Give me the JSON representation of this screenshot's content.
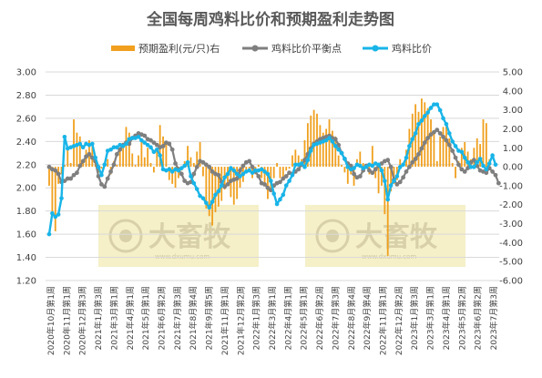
{
  "colors": {
    "profit_bar": "#f0a01e",
    "balance_line": "#7f7f7f",
    "ratio_line": "#18b4e8",
    "grid": "#d9d9d9",
    "text": "#404040",
    "title": "#595959",
    "watermark_box": "#f5f0c8"
  },
  "watermark": {
    "brand": "大畜牧",
    "url": "www.dxumu.com"
  },
  "chart_data": {
    "type": "combo-bar-line",
    "title": "全国每周鸡料比价和预期盈利走势图",
    "legend_position": "top",
    "grid": true,
    "xlabel": "",
    "ylabel": "",
    "ylabel_right": "",
    "ylim": [
      1.2,
      3.0
    ],
    "ylim_right": [
      -6.0,
      5.0
    ],
    "yticks": [
      "3.00",
      "2.80",
      "2.60",
      "2.40",
      "2.20",
      "2.00",
      "1.80",
      "1.60",
      "1.40",
      "1.20"
    ],
    "yticks_right": [
      "5.00",
      "4.00",
      "3.00",
      "2.00",
      "1.00",
      "0.00",
      "-1.00",
      "-2.00",
      "-3.00",
      "-4.00",
      "-5.00",
      "-6.00"
    ],
    "x_tick_labels": [
      "2020年10月第1周",
      "2020年11月第1周",
      "2020年12月第3周",
      "2021年1月第3周",
      "2021年3月第1周",
      "2021年4月第1周",
      "2021年5月第1周",
      "2021年6月第2周",
      "2021年7月第3周",
      "2021年8月第4周",
      "2021年9月第5周",
      "2021年11月第1周",
      "2021年12月第2周",
      "2022年1月第3周",
      "2022年3月第1周",
      "2022年4月第1周",
      "2022年5月第1周",
      "2022年6月第2周",
      "2022年7月第3周",
      "2022年8月第4周",
      "2022年9月第4周",
      "2022年11月第1周",
      "2022年12月第2周",
      "2023年1月第3周",
      "2023年3月第1周",
      "2023年4月第1周",
      "2023年5月第2周",
      "2023年6月第2周",
      "2023年7月第3周"
    ],
    "series": [
      {
        "name": "预期盈利(元/只)右",
        "type": "bar",
        "axis": "right",
        "values": [
          -1.0,
          -2.5,
          -3.4,
          -0.9,
          -0.4,
          0.1,
          1.0,
          0.2,
          2.5,
          1.8,
          1.6,
          0.3,
          0.9,
          1.4,
          1.2,
          0.5,
          -0.3,
          -0.1,
          0.2,
          0.4,
          -0.4,
          0.3,
          0.1,
          0.9,
          1.2,
          2.1,
          1.8,
          0.7,
          0.1,
          0.6,
          1.4,
          0.5,
          1.0,
          0.2,
          -0.3,
          0.9,
          2.2,
          1.6,
          1.2,
          -0.7,
          -0.9,
          -1.1,
          -0.6,
          -0.2,
          0.3,
          1.1,
          0.5,
          0.2,
          0.8,
          1.3,
          -0.5,
          -2.2,
          -2.6,
          -3.1,
          -2.4,
          -2.1,
          -1.8,
          -1.2,
          -0.9,
          -1.6,
          -2.0,
          -1.7,
          -1.1,
          -0.8,
          -0.3,
          -0.2,
          -0.6,
          -0.4,
          0.1,
          -0.6,
          -0.9,
          -1.7,
          -1.2,
          -0.6,
          0.2,
          -0.6,
          -0.7,
          -0.2,
          -0.1,
          0.6,
          0.9,
          0.6,
          0.4,
          1.4,
          2.3,
          2.7,
          3.0,
          2.8,
          2.2,
          1.8,
          2.0,
          2.5,
          1.9,
          1.6,
          0.6,
          0.1,
          -0.3,
          -0.9,
          -0.4,
          -1.0,
          0.4,
          0.8,
          0.2,
          -0.1,
          -0.4,
          1.1,
          -0.6,
          -1.4,
          -1.0,
          -2.5,
          -4.7,
          -1.3,
          -0.9,
          -0.7,
          0.4,
          0.1,
          0.9,
          2.0,
          2.8,
          3.3,
          2.9,
          3.6,
          3.4,
          3.1,
          2.5,
          1.9,
          0.3,
          1.6,
          2.1,
          2.3,
          1.5,
          0.2,
          -0.6,
          0.3,
          1.0,
          1.3,
          0.8,
          0.4,
          1.0,
          1.5,
          1.2,
          2.5,
          2.3,
          0.4
        ]
      },
      {
        "name": "鸡料比价平衡点",
        "type": "line",
        "axis": "left",
        "values": [
          2.18,
          2.16,
          2.15,
          2.12,
          2.05,
          2.06,
          2.08,
          2.08,
          2.11,
          2.13,
          2.19,
          2.23,
          2.27,
          2.29,
          2.26,
          2.23,
          2.1,
          2.03,
          2.01,
          2.08,
          2.14,
          2.2,
          2.29,
          2.33,
          2.37,
          2.39,
          2.38,
          2.43,
          2.45,
          2.47,
          2.46,
          2.45,
          2.42,
          2.41,
          2.39,
          2.37,
          2.35,
          2.36,
          2.39,
          2.38,
          2.33,
          2.21,
          2.16,
          2.12,
          2.06,
          2.04,
          2.05,
          2.12,
          2.18,
          2.23,
          2.22,
          2.2,
          2.18,
          2.14,
          2.12,
          2.11,
          2.05,
          2.01,
          2.03,
          2.06,
          2.07,
          2.08,
          2.15,
          2.19,
          2.22,
          2.23,
          2.18,
          2.14,
          2.1,
          2.04,
          2.03,
          2.0,
          1.98,
          2.02,
          2.04,
          2.05,
          2.08,
          2.1,
          2.13,
          2.12,
          2.14,
          2.16,
          2.2,
          2.24,
          2.29,
          2.34,
          2.38,
          2.4,
          2.42,
          2.43,
          2.44,
          2.45,
          2.43,
          2.42,
          2.37,
          2.3,
          2.25,
          2.21,
          2.19,
          2.12,
          2.09,
          2.1,
          2.15,
          2.19,
          2.15,
          2.13,
          2.16,
          2.19,
          2.21,
          2.23,
          2.24,
          2.18,
          2.07,
          2.03,
          2.05,
          2.09,
          2.14,
          2.18,
          2.22,
          2.25,
          2.29,
          2.34,
          2.39,
          2.43,
          2.46,
          2.48,
          2.5,
          2.47,
          2.44,
          2.41,
          2.37,
          2.32,
          2.26,
          2.2,
          2.16,
          2.14,
          2.17,
          2.22,
          2.24,
          2.19,
          2.15,
          2.14,
          2.13,
          2.17,
          2.14,
          2.11,
          2.04
        ]
      },
      {
        "name": "鸡料比价",
        "type": "line",
        "axis": "left",
        "values": [
          1.6,
          1.78,
          1.75,
          1.77,
          1.91,
          2.44,
          2.34,
          2.35,
          2.36,
          2.37,
          2.38,
          2.35,
          2.38,
          2.37,
          2.38,
          2.26,
          2.18,
          2.11,
          2.2,
          2.32,
          2.33,
          2.35,
          2.35,
          2.37,
          2.36,
          2.38,
          2.42,
          2.43,
          2.43,
          2.44,
          2.41,
          2.39,
          2.37,
          2.35,
          2.31,
          2.33,
          2.28,
          2.16,
          2.15,
          2.16,
          2.14,
          2.16,
          2.15,
          2.17,
          2.19,
          2.22,
          2.1,
          2.04,
          1.99,
          1.93,
          1.91,
          1.87,
          1.83,
          1.88,
          1.94,
          1.97,
          2.02,
          2.09,
          2.12,
          2.17,
          2.15,
          2.12,
          2.1,
          2.12,
          2.14,
          2.15,
          2.13,
          2.15,
          2.15,
          2.16,
          2.14,
          2.12,
          2.06,
          1.95,
          1.86,
          1.9,
          1.94,
          2.02,
          2.06,
          2.11,
          2.2,
          2.2,
          2.21,
          2.18,
          2.24,
          2.32,
          2.37,
          2.38,
          2.39,
          2.4,
          2.41,
          2.43,
          2.4,
          2.36,
          2.33,
          2.3,
          2.25,
          2.18,
          2.16,
          2.17,
          2.2,
          2.19,
          2.17,
          2.18,
          2.2,
          2.19,
          2.21,
          2.2,
          2.15,
          2.06,
          1.9,
          2.02,
          2.06,
          2.1,
          2.18,
          2.2,
          2.26,
          2.36,
          2.42,
          2.47,
          2.55,
          2.58,
          2.62,
          2.65,
          2.69,
          2.72,
          2.72,
          2.67,
          2.6,
          2.55,
          2.47,
          2.4,
          2.36,
          2.32,
          2.31,
          2.26,
          2.22,
          2.18,
          2.18,
          2.22,
          2.25,
          2.19,
          2.16,
          2.21,
          2.28,
          2.2
        ]
      }
    ]
  }
}
